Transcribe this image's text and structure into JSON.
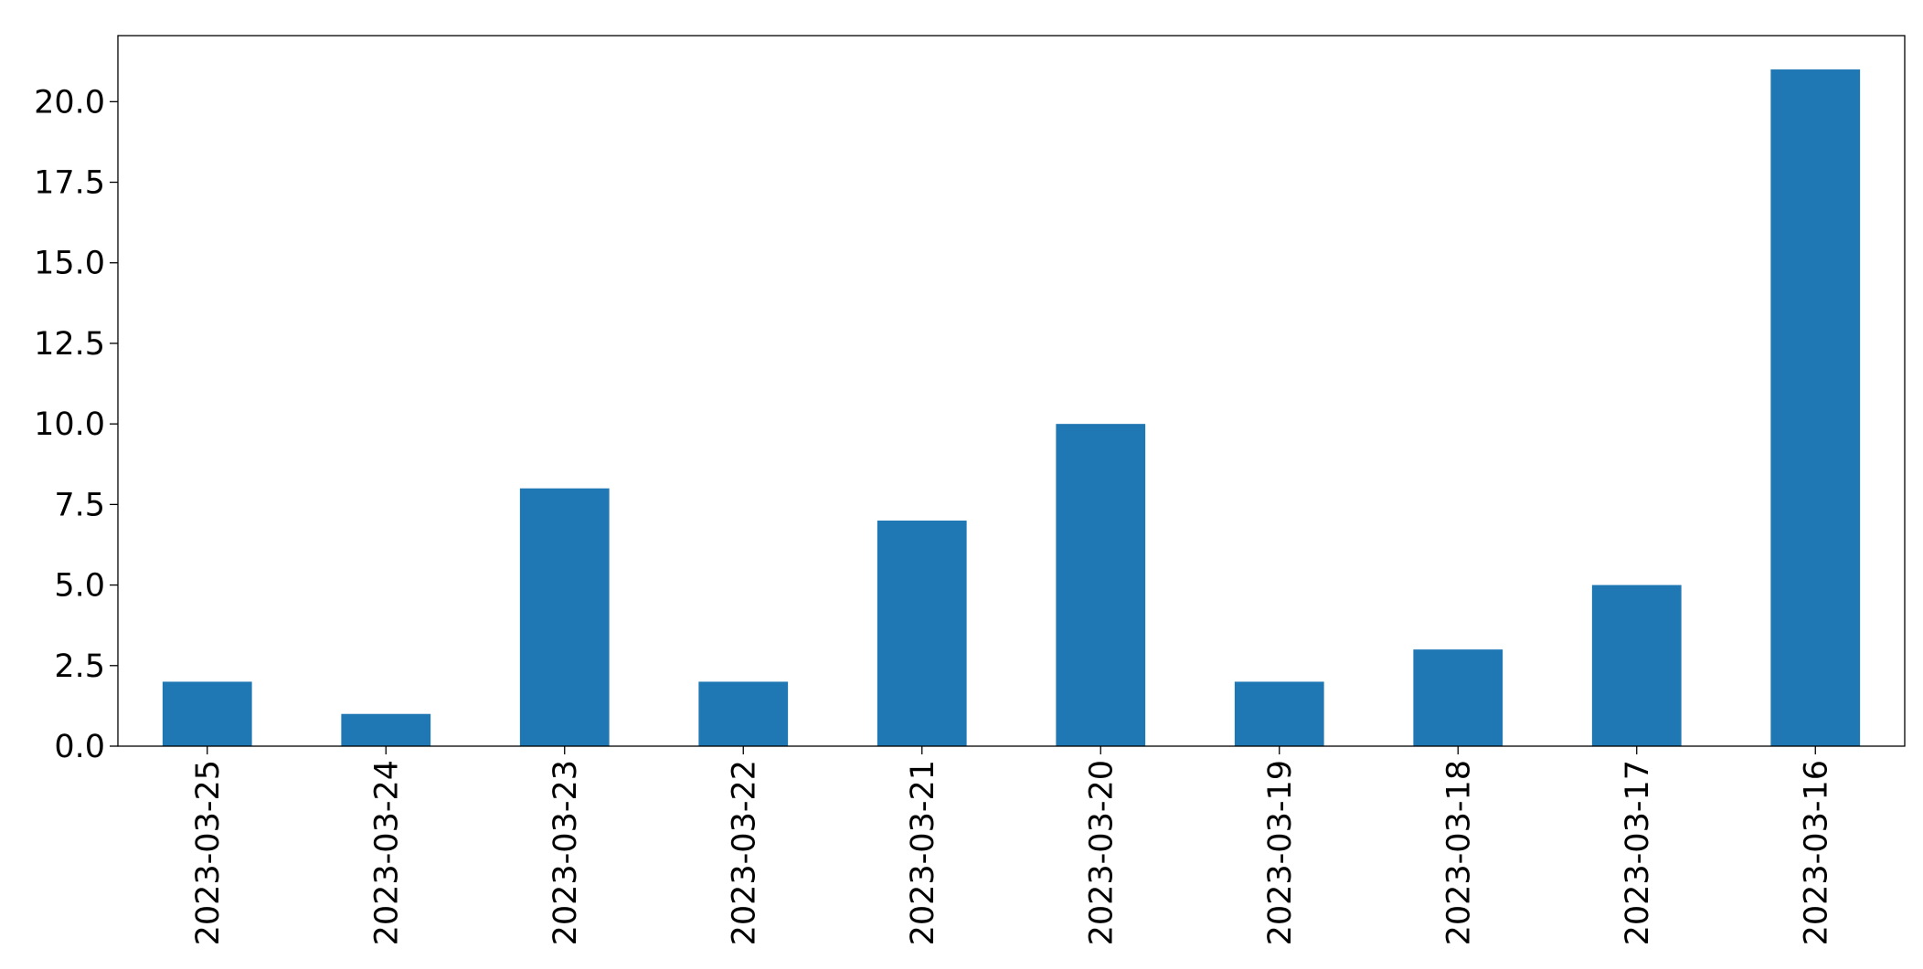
{
  "chart_data": {
    "type": "bar",
    "categories": [
      "2023-03-25",
      "2023-03-24",
      "2023-03-23",
      "2023-03-22",
      "2023-03-21",
      "2023-03-20",
      "2023-03-19",
      "2023-03-18",
      "2023-03-17",
      "2023-03-16"
    ],
    "values": [
      2,
      1,
      8,
      2,
      7,
      10,
      2,
      3,
      5,
      21
    ],
    "color": "#1f77b4",
    "ylim": [
      0,
      22.05
    ],
    "yticks": [
      {
        "value": 0,
        "label": "0.0"
      },
      {
        "value": 2.5,
        "label": "2.5"
      },
      {
        "value": 5,
        "label": "5.0"
      },
      {
        "value": 7.5,
        "label": "7.5"
      },
      {
        "value": 10,
        "label": "10.0"
      },
      {
        "value": 12.5,
        "label": "12.5"
      },
      {
        "value": 15,
        "label": "15.0"
      },
      {
        "value": 17.5,
        "label": "17.5"
      },
      {
        "value": 20,
        "label": "20.0"
      }
    ],
    "grid": false
  }
}
